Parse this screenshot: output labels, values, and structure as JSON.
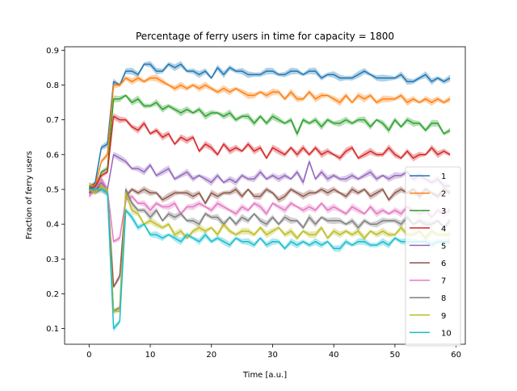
{
  "chart_data": {
    "type": "line",
    "title": "Percentage of ferry users in time for capacity = 1800",
    "xlabel": "Time [a.u.]",
    "ylabel": "Fraction of ferry users",
    "xlim": [
      -4,
      61.5
    ],
    "ylim": [
      0.055,
      0.91
    ],
    "xticks": [
      0,
      10,
      20,
      30,
      40,
      50,
      60
    ],
    "yticks": [
      0.1,
      0.2,
      0.3,
      0.4,
      0.5,
      0.6,
      0.7,
      0.8,
      0.9
    ],
    "grid": false,
    "legend_position": "lower-right",
    "x": [
      0,
      1,
      2,
      3,
      4,
      5,
      6,
      7,
      8,
      9,
      10,
      11,
      12,
      13,
      14,
      15,
      16,
      17,
      18,
      19,
      20,
      21,
      22,
      23,
      24,
      25,
      26,
      27,
      28,
      29,
      30,
      31,
      32,
      33,
      34,
      35,
      36,
      37,
      38,
      39,
      40,
      41,
      42,
      43,
      44,
      45,
      46,
      47,
      48,
      49,
      50,
      51,
      52,
      53,
      54,
      55,
      56,
      57,
      58,
      59
    ],
    "series": [
      {
        "name": "1",
        "color": "#1f77b4",
        "values": [
          0.5,
          0.52,
          0.62,
          0.63,
          0.81,
          0.8,
          0.84,
          0.84,
          0.83,
          0.86,
          0.86,
          0.84,
          0.84,
          0.86,
          0.85,
          0.86,
          0.84,
          0.84,
          0.83,
          0.84,
          0.82,
          0.85,
          0.83,
          0.85,
          0.84,
          0.84,
          0.83,
          0.83,
          0.83,
          0.84,
          0.84,
          0.83,
          0.83,
          0.84,
          0.84,
          0.83,
          0.84,
          0.84,
          0.82,
          0.83,
          0.83,
          0.82,
          0.82,
          0.82,
          0.83,
          0.84,
          0.83,
          0.82,
          0.82,
          0.82,
          0.82,
          0.83,
          0.81,
          0.81,
          0.82,
          0.83,
          0.81,
          0.82,
          0.81,
          0.82
        ]
      },
      {
        "name": "2",
        "color": "#ff7f0e",
        "values": [
          0.51,
          0.51,
          0.58,
          0.6,
          0.8,
          0.8,
          0.82,
          0.81,
          0.82,
          0.81,
          0.82,
          0.82,
          0.81,
          0.8,
          0.79,
          0.8,
          0.79,
          0.8,
          0.79,
          0.8,
          0.79,
          0.78,
          0.79,
          0.78,
          0.79,
          0.78,
          0.77,
          0.77,
          0.78,
          0.77,
          0.78,
          0.78,
          0.76,
          0.78,
          0.76,
          0.76,
          0.78,
          0.76,
          0.77,
          0.77,
          0.76,
          0.75,
          0.77,
          0.75,
          0.77,
          0.76,
          0.77,
          0.75,
          0.76,
          0.76,
          0.76,
          0.77,
          0.75,
          0.76,
          0.75,
          0.76,
          0.75,
          0.76,
          0.75,
          0.76
        ]
      },
      {
        "name": "3",
        "color": "#2ca02c",
        "values": [
          0.51,
          0.5,
          0.55,
          0.56,
          0.76,
          0.76,
          0.77,
          0.75,
          0.76,
          0.74,
          0.74,
          0.75,
          0.73,
          0.74,
          0.73,
          0.72,
          0.73,
          0.72,
          0.73,
          0.71,
          0.72,
          0.72,
          0.71,
          0.72,
          0.7,
          0.71,
          0.71,
          0.69,
          0.71,
          0.69,
          0.71,
          0.7,
          0.69,
          0.7,
          0.66,
          0.7,
          0.69,
          0.7,
          0.68,
          0.7,
          0.69,
          0.69,
          0.7,
          0.69,
          0.7,
          0.7,
          0.68,
          0.7,
          0.69,
          0.67,
          0.7,
          0.68,
          0.7,
          0.69,
          0.69,
          0.67,
          0.69,
          0.69,
          0.66,
          0.67
        ]
      },
      {
        "name": "4",
        "color": "#d62728",
        "values": [
          0.5,
          0.51,
          0.54,
          0.55,
          0.71,
          0.7,
          0.7,
          0.68,
          0.67,
          0.69,
          0.66,
          0.67,
          0.65,
          0.66,
          0.63,
          0.65,
          0.64,
          0.65,
          0.61,
          0.63,
          0.62,
          0.6,
          0.63,
          0.61,
          0.62,
          0.61,
          0.63,
          0.61,
          0.62,
          0.59,
          0.62,
          0.61,
          0.6,
          0.62,
          0.6,
          0.62,
          0.6,
          0.62,
          0.6,
          0.61,
          0.6,
          0.59,
          0.61,
          0.62,
          0.59,
          0.6,
          0.61,
          0.6,
          0.6,
          0.62,
          0.6,
          0.59,
          0.61,
          0.59,
          0.6,
          0.6,
          0.62,
          0.6,
          0.61,
          0.6
        ]
      },
      {
        "name": "5",
        "color": "#9467bd",
        "values": [
          0.49,
          0.5,
          0.52,
          0.5,
          0.6,
          0.59,
          0.58,
          0.56,
          0.56,
          0.55,
          0.57,
          0.54,
          0.55,
          0.56,
          0.53,
          0.54,
          0.55,
          0.53,
          0.54,
          0.53,
          0.52,
          0.54,
          0.52,
          0.53,
          0.52,
          0.54,
          0.53,
          0.53,
          0.55,
          0.53,
          0.54,
          0.53,
          0.54,
          0.53,
          0.55,
          0.52,
          0.58,
          0.53,
          0.55,
          0.53,
          0.54,
          0.53,
          0.53,
          0.54,
          0.53,
          0.54,
          0.55,
          0.53,
          0.54,
          0.53,
          0.54,
          0.54,
          0.55,
          0.53,
          0.54,
          0.53,
          0.52,
          0.53,
          0.51,
          0.51
        ]
      },
      {
        "name": "6",
        "color": "#8c564b",
        "values": [
          0.49,
          0.5,
          0.51,
          0.5,
          0.22,
          0.25,
          0.48,
          0.5,
          0.49,
          0.5,
          0.49,
          0.49,
          0.47,
          0.48,
          0.49,
          0.49,
          0.49,
          0.48,
          0.49,
          0.46,
          0.49,
          0.48,
          0.49,
          0.49,
          0.5,
          0.48,
          0.5,
          0.48,
          0.48,
          0.5,
          0.49,
          0.47,
          0.48,
          0.5,
          0.49,
          0.48,
          0.49,
          0.49,
          0.5,
          0.49,
          0.5,
          0.49,
          0.48,
          0.5,
          0.49,
          0.5,
          0.48,
          0.49,
          0.5,
          0.47,
          0.49,
          0.5,
          0.49,
          0.5,
          0.48,
          0.5,
          0.49,
          0.48,
          0.5,
          0.49
        ]
      },
      {
        "name": "7",
        "color": "#e377c2",
        "values": [
          0.48,
          0.5,
          0.53,
          0.5,
          0.35,
          0.36,
          0.47,
          0.48,
          0.46,
          0.46,
          0.44,
          0.46,
          0.45,
          0.45,
          0.46,
          0.43,
          0.45,
          0.45,
          0.46,
          0.45,
          0.44,
          0.46,
          0.45,
          0.44,
          0.43,
          0.45,
          0.44,
          0.46,
          0.45,
          0.43,
          0.46,
          0.45,
          0.44,
          0.46,
          0.45,
          0.44,
          0.45,
          0.44,
          0.46,
          0.44,
          0.45,
          0.44,
          0.43,
          0.45,
          0.44,
          0.43,
          0.45,
          0.43,
          0.44,
          0.43,
          0.44,
          0.43,
          0.45,
          0.44,
          0.43,
          0.44,
          0.42,
          0.44,
          0.43,
          0.44
        ]
      },
      {
        "name": "8",
        "color": "#7f7f7f",
        "values": [
          0.5,
          0.49,
          0.5,
          0.49,
          0.15,
          0.16,
          0.5,
          0.46,
          0.44,
          0.44,
          0.42,
          0.44,
          0.41,
          0.43,
          0.42,
          0.43,
          0.41,
          0.41,
          0.4,
          0.43,
          0.42,
          0.42,
          0.4,
          0.42,
          0.4,
          0.42,
          0.41,
          0.43,
          0.41,
          0.4,
          0.42,
          0.4,
          0.42,
          0.41,
          0.41,
          0.39,
          0.42,
          0.4,
          0.42,
          0.41,
          0.41,
          0.41,
          0.4,
          0.41,
          0.39,
          0.41,
          0.4,
          0.4,
          0.41,
          0.41,
          0.41,
          0.4,
          0.42,
          0.4,
          0.41,
          0.4,
          0.4,
          0.41,
          0.39,
          0.41
        ]
      },
      {
        "name": "9",
        "color": "#bcbd22",
        "values": [
          0.5,
          0.49,
          0.51,
          0.5,
          0.15,
          0.15,
          0.49,
          0.44,
          0.43,
          0.4,
          0.41,
          0.4,
          0.39,
          0.4,
          0.37,
          0.38,
          0.36,
          0.38,
          0.39,
          0.38,
          0.39,
          0.37,
          0.4,
          0.38,
          0.37,
          0.38,
          0.38,
          0.37,
          0.39,
          0.37,
          0.38,
          0.39,
          0.37,
          0.38,
          0.36,
          0.38,
          0.37,
          0.37,
          0.39,
          0.36,
          0.38,
          0.37,
          0.38,
          0.37,
          0.38,
          0.36,
          0.38,
          0.37,
          0.38,
          0.37,
          0.37,
          0.39,
          0.37,
          0.37,
          0.38,
          0.36,
          0.38,
          0.37,
          0.37,
          0.37
        ]
      },
      {
        "name": "10",
        "color": "#17becf",
        "values": [
          0.5,
          0.5,
          0.5,
          0.49,
          0.1,
          0.12,
          0.44,
          0.42,
          0.39,
          0.4,
          0.37,
          0.37,
          0.36,
          0.37,
          0.36,
          0.35,
          0.37,
          0.36,
          0.35,
          0.37,
          0.35,
          0.36,
          0.35,
          0.34,
          0.36,
          0.35,
          0.35,
          0.34,
          0.36,
          0.34,
          0.35,
          0.35,
          0.33,
          0.35,
          0.34,
          0.35,
          0.34,
          0.35,
          0.34,
          0.35,
          0.33,
          0.33,
          0.35,
          0.34,
          0.35,
          0.35,
          0.34,
          0.34,
          0.35,
          0.34,
          0.36,
          0.35,
          0.35,
          0.35,
          0.35,
          0.35,
          0.34,
          0.35,
          0.35,
          0.35
        ]
      }
    ]
  }
}
